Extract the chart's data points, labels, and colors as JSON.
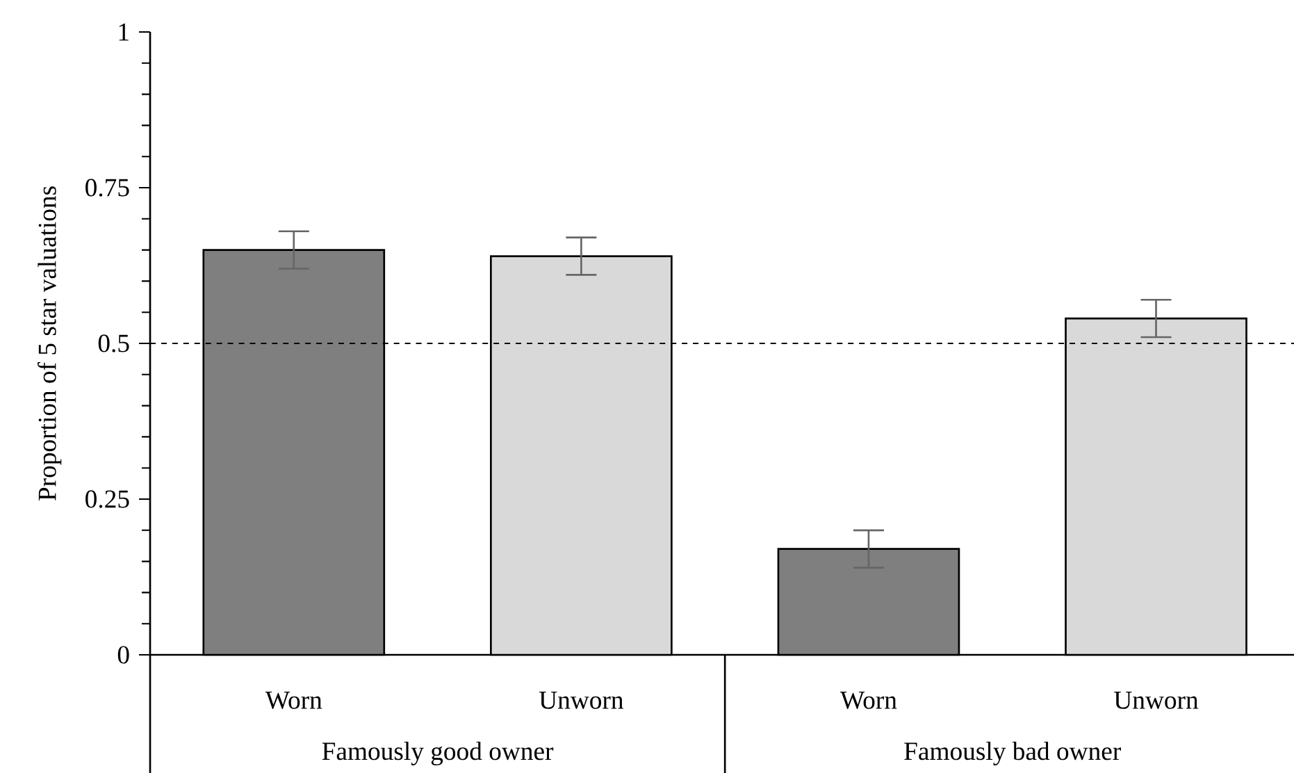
{
  "chart_data": {
    "type": "bar",
    "ylabel": "Proportion of 5 star valuations",
    "categories": [
      "Worn",
      "Unworn",
      "Worn",
      "Unworn"
    ],
    "values": [
      0.65,
      0.64,
      0.17,
      0.54
    ],
    "errors": [
      0.03,
      0.03,
      0.03,
      0.03
    ],
    "colors": [
      "#7f7f7f",
      "#d9d9d9",
      "#7f7f7f",
      "#d9d9d9"
    ],
    "ylim": [
      0,
      1
    ],
    "yticks": [
      0,
      0.25,
      0.5,
      0.75,
      1
    ],
    "ref_lines": [
      {
        "axis": "y",
        "value": 0.5,
        "line_style": "dashed",
        "color": "#000000"
      }
    ],
    "annotations": [
      "Famously good owner",
      "Famously bad owner"
    ],
    "grid": false
  }
}
